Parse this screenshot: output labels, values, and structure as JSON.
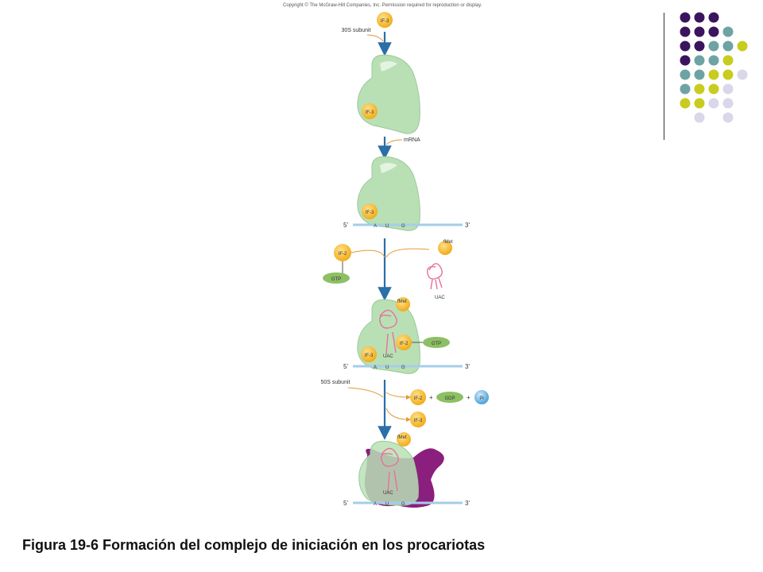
{
  "copyright": "Copyright © The McGraw-Hill Companies, Inc. Permission required for reproduction or display.",
  "caption": "Figura 19-6 Formación del complejo de iniciación en los procariotas",
  "labels": {
    "if3": "IF-3",
    "if2": "IF-2",
    "gtp": "GTP",
    "gdp": "GDP",
    "pi": "Pi",
    "fmet": "fMet",
    "uac": "UAC",
    "subunit_30s": "30S subunit",
    "subunit_50s": "50S subunit",
    "mrna": "mRNA",
    "five_prime": "5'",
    "three_prime": "3'",
    "codon_a": "A",
    "codon_u": "U",
    "codon_g": "G",
    "plus": "+"
  },
  "colors": {
    "dark_purple": "#3b145e",
    "teal": "#6ea3a3",
    "olive": "#c8cc1e",
    "lavender": "#d8d8ea",
    "ribosome_small": "#b9e0b5",
    "ribosome_large": "#8b1f7d",
    "factor_orange": "#f6b31a",
    "gtp_green": "#8cc063",
    "mrna_blue": "#a6cde8",
    "trna_pink": "#e8709c",
    "arrow_blue": "#2a6fa8"
  },
  "dots": [
    [
      "dark_purple",
      "dark_purple",
      "dark_purple",
      null,
      null
    ],
    [
      "dark_purple",
      "dark_purple",
      "dark_purple",
      "teal",
      null
    ],
    [
      "dark_purple",
      "dark_purple",
      "teal",
      "teal",
      "olive"
    ],
    [
      "dark_purple",
      "teal",
      "teal",
      "olive",
      null
    ],
    [
      "teal",
      "teal",
      "olive",
      "olive",
      "lavender"
    ],
    [
      "teal",
      "olive",
      "olive",
      "lavender",
      null
    ],
    [
      "olive",
      "olive",
      "lavender",
      "lavender",
      null
    ],
    [
      null,
      "lavender",
      null,
      "lavender",
      null
    ]
  ]
}
